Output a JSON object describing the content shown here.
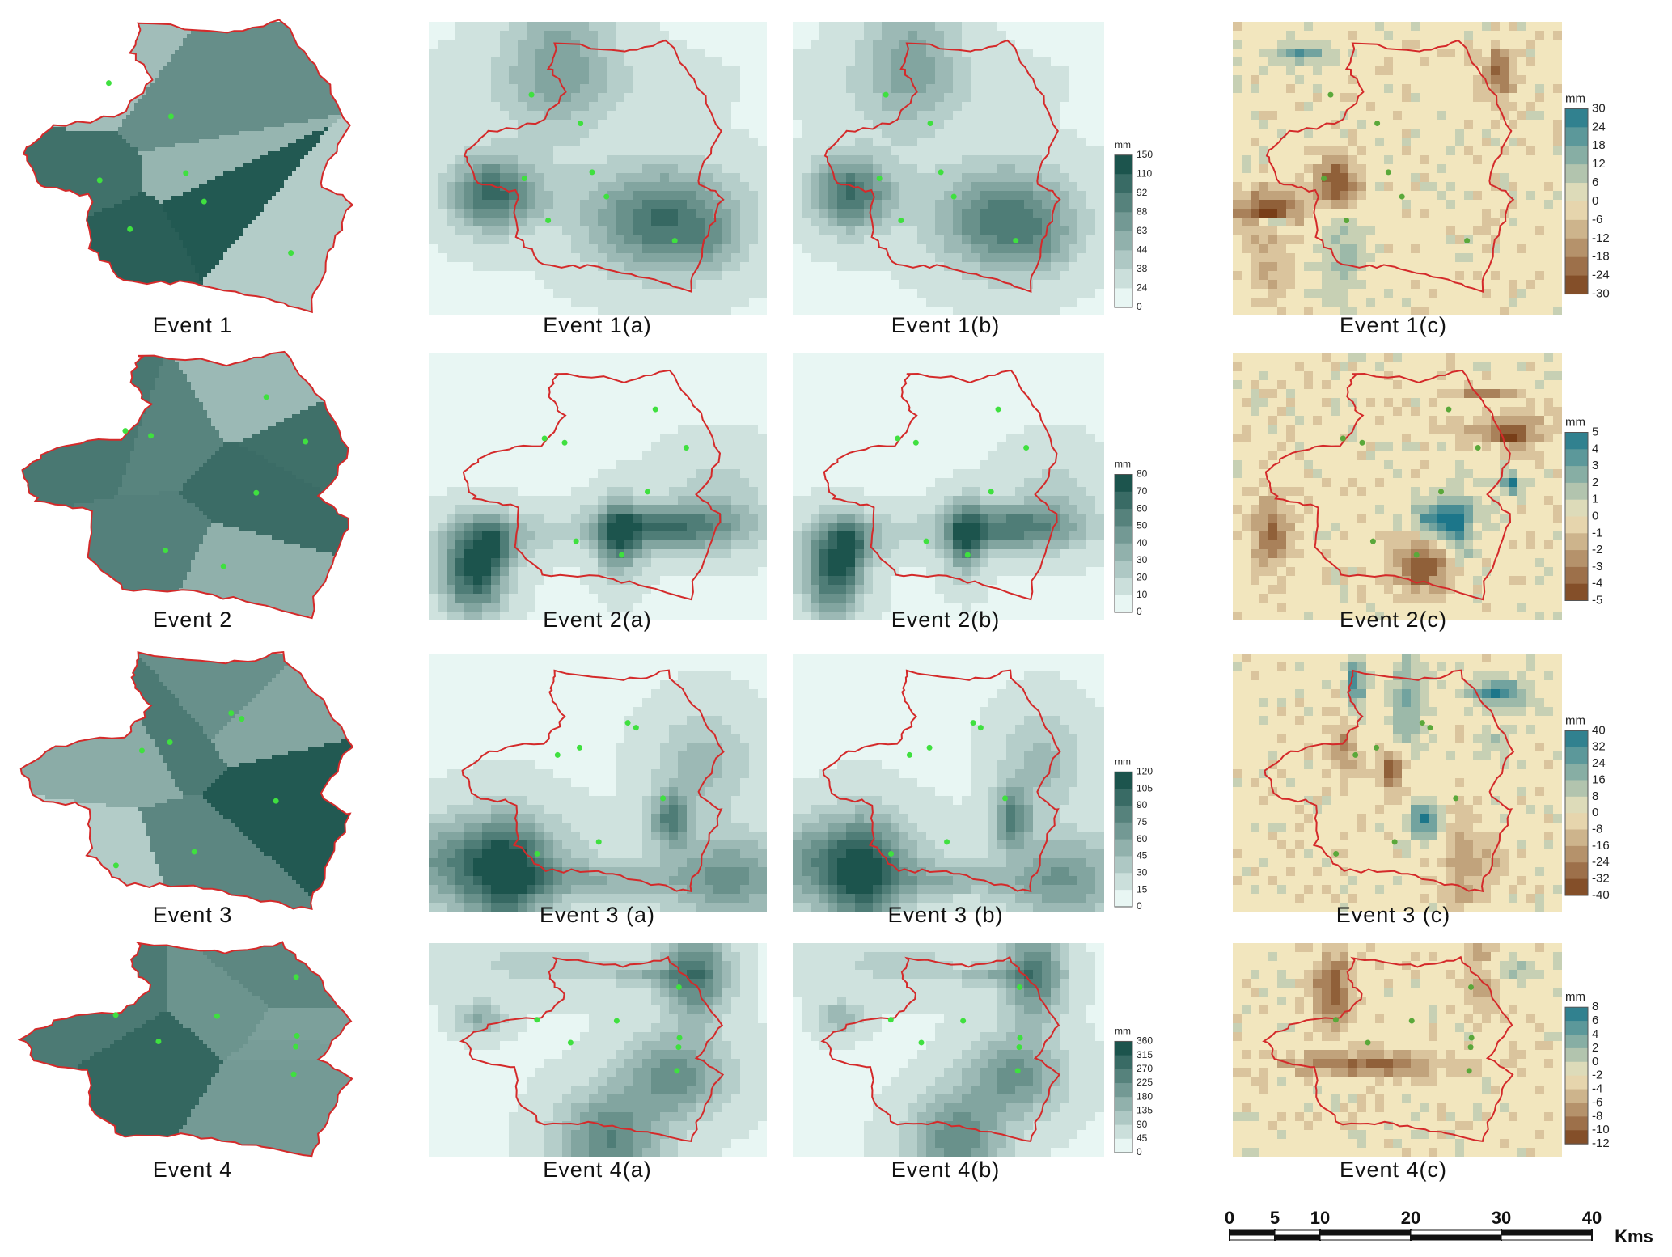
{
  "events": [
    {
      "thiessen_caption": "Event 1",
      "a_caption": "Event 1(a)",
      "b_caption": "Event 1(b)",
      "c_caption": "Event 1(c)",
      "ab_legend": {
        "unit": "mm",
        "ticks": [
          150,
          110,
          92,
          88,
          63,
          44,
          38,
          24,
          0
        ]
      },
      "c_legend": {
        "unit": "mm",
        "ticks": [
          30,
          24,
          18,
          12,
          6,
          0,
          -6,
          -12,
          -18,
          -24,
          -30
        ]
      }
    },
    {
      "thiessen_caption": "Event 2",
      "a_caption": "Event 2(a)",
      "b_caption": "Event 2(b)",
      "c_caption": "Event 2(c)",
      "ab_legend": {
        "unit": "mm",
        "ticks": [
          80,
          70,
          60,
          50,
          40,
          30,
          20,
          10,
          0
        ]
      },
      "c_legend": {
        "unit": "mm",
        "ticks": [
          5,
          4,
          3,
          2,
          1,
          0,
          -1,
          -2,
          -3,
          -4,
          -5
        ]
      }
    },
    {
      "thiessen_caption": "Event 3",
      "a_caption": "Event 3 (a)",
      "b_caption": "Event 3 (b)",
      "c_caption": "Event 3 (c)",
      "ab_legend": {
        "unit": "mm",
        "ticks": [
          120,
          105,
          90,
          75,
          60,
          45,
          30,
          15,
          0
        ]
      },
      "c_legend": {
        "unit": "mm",
        "ticks": [
          40,
          32,
          24,
          16,
          8,
          0,
          -8,
          -16,
          -24,
          -32,
          -40
        ]
      }
    },
    {
      "thiessen_caption": "Event 4",
      "a_caption": "Event 4(a)",
      "b_caption": "Event 4(b)",
      "c_caption": "Event 4(c)",
      "ab_legend": {
        "unit": "mm",
        "ticks": [
          360,
          315,
          270,
          225,
          180,
          135,
          90,
          45,
          0
        ]
      },
      "c_legend": {
        "unit": "mm",
        "ticks": [
          8,
          6,
          4,
          2,
          0,
          -2,
          -4,
          -6,
          -8,
          -10,
          -12
        ]
      }
    }
  ],
  "scale_bar": {
    "ticks": [
      0,
      5,
      10,
      20,
      30,
      40
    ],
    "unit": "Kms"
  }
}
